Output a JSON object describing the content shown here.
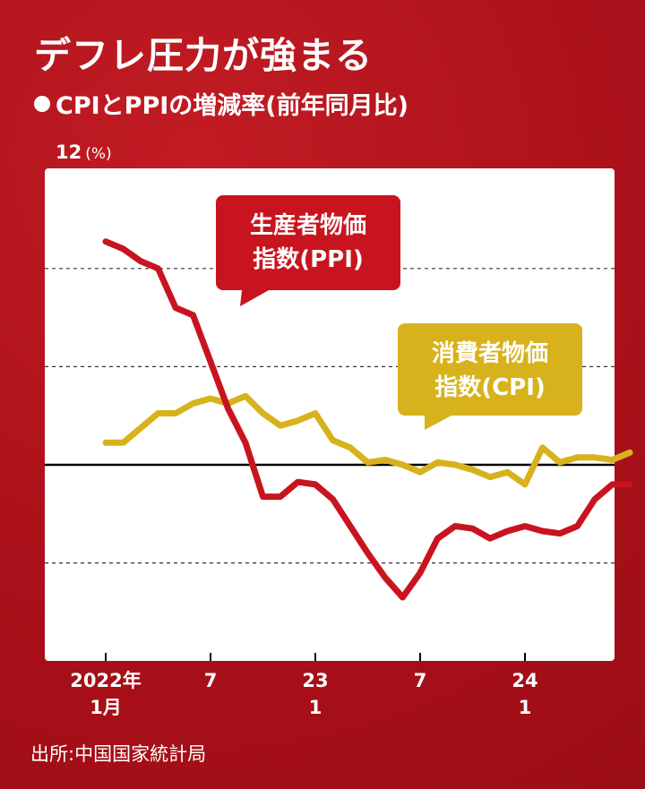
{
  "header": {
    "title": "デフレ圧力が強まる",
    "subtitle": "CPIとPPIの増減率(前年同月比)"
  },
  "y_axis": {
    "top_label": "12",
    "unit": "(%)"
  },
  "source": "出所:中国国家統計局",
  "colors": {
    "background": "#b3141c",
    "ppi": "#c8141e",
    "cpi": "#d8b21c",
    "plot_bg": "#ffffff"
  },
  "chart_data": {
    "type": "line",
    "ylim": [
      -8,
      12
    ],
    "yticks": [
      -8,
      -4,
      0,
      4,
      8,
      12
    ],
    "xticks": [
      {
        "index": 0,
        "line1": "2022年",
        "line2": "1月"
      },
      {
        "index": 6,
        "line1": "7",
        "line2": ""
      },
      {
        "index": 12,
        "line1": "23",
        "line2": "1"
      },
      {
        "index": 18,
        "line1": "7",
        "line2": ""
      },
      {
        "index": 24,
        "line1": "24",
        "line2": "1"
      }
    ],
    "x": [
      "2022-01",
      "2022-02",
      "2022-03",
      "2022-04",
      "2022-05",
      "2022-06",
      "2022-07",
      "2022-08",
      "2022-09",
      "2022-10",
      "2022-11",
      "2022-12",
      "2023-01",
      "2023-02",
      "2023-03",
      "2023-04",
      "2023-05",
      "2023-06",
      "2023-07",
      "2023-08",
      "2023-09",
      "2023-10",
      "2023-11",
      "2023-12",
      "2024-01",
      "2024-02",
      "2024-03",
      "2024-04",
      "2024-05",
      "2024-06",
      "2024-07"
    ],
    "series": [
      {
        "name": "生産者物価指数(PPI)",
        "label_lines": [
          "生産者物価",
          "指数(PPI)"
        ],
        "color": "#c8141e",
        "values": [
          9.1,
          8.8,
          8.3,
          8.0,
          6.4,
          6.1,
          4.2,
          2.3,
          0.9,
          -1.3,
          -1.3,
          -0.7,
          -0.8,
          -1.4,
          -2.5,
          -3.6,
          -4.6,
          -5.4,
          -4.4,
          -3.0,
          -2.5,
          -2.6,
          -3.0,
          -2.7,
          -2.5,
          -2.7,
          -2.8,
          -2.5,
          -1.4,
          -0.8,
          -0.8
        ]
      },
      {
        "name": "消費者物価指数(CPI)",
        "label_lines": [
          "消費者物価",
          "指数(CPI)"
        ],
        "color": "#d8b21c",
        "values": [
          0.9,
          0.9,
          1.5,
          2.1,
          2.1,
          2.5,
          2.7,
          2.5,
          2.8,
          2.1,
          1.6,
          1.8,
          2.1,
          1.0,
          0.7,
          0.1,
          0.2,
          0.0,
          -0.3,
          0.1,
          0.0,
          -0.2,
          -0.5,
          -0.3,
          -0.8,
          0.7,
          0.1,
          0.3,
          0.3,
          0.2,
          0.5
        ]
      }
    ]
  }
}
